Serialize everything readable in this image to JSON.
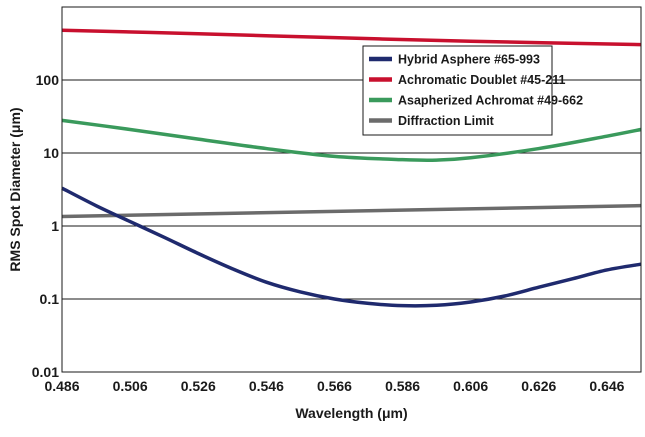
{
  "chart_data": {
    "type": "line",
    "title": "",
    "xlabel": "Wavelength (μm)",
    "ylabel": "RMS Spot Diameter (μm)",
    "xlim": [
      0.486,
      0.656
    ],
    "ylim": [
      0.01,
      1000
    ],
    "yscale": "log",
    "grid": "horizontal",
    "legend_position": "top-right",
    "x_ticks": [
      "0.486",
      "0.506",
      "0.526",
      "0.546",
      "0.566",
      "0.586",
      "0.606",
      "0.626",
      "0.646"
    ],
    "x_tick_values": [
      0.486,
      0.506,
      0.526,
      0.546,
      0.566,
      0.586,
      0.606,
      0.626,
      0.646
    ],
    "y_ticks": [
      "0.01",
      "0.1",
      "1",
      "10",
      "100"
    ],
    "y_tick_values": [
      0.01,
      0.1,
      1,
      10,
      100
    ],
    "series": [
      {
        "name": "Hybrid Asphere #65-993",
        "color": "#1f2a6e",
        "x": [
          0.486,
          0.496,
          0.506,
          0.516,
          0.526,
          0.536,
          0.546,
          0.556,
          0.566,
          0.576,
          0.586,
          0.596,
          0.606,
          0.616,
          0.626,
          0.636,
          0.646,
          0.656
        ],
        "y": [
          3.3,
          1.9,
          1.15,
          0.7,
          0.42,
          0.26,
          0.17,
          0.125,
          0.1,
          0.087,
          0.081,
          0.082,
          0.091,
          0.11,
          0.145,
          0.19,
          0.25,
          0.3
        ]
      },
      {
        "name": "Achromatic Doublet #45-211",
        "color": "#c8102e",
        "x": [
          0.486,
          0.526,
          0.566,
          0.606,
          0.656
        ],
        "y": [
          480,
          430,
          380,
          340,
          305
        ]
      },
      {
        "name": "Asapherized Achromat #49-662",
        "color": "#3a9a5c",
        "x": [
          0.486,
          0.506,
          0.526,
          0.546,
          0.566,
          0.586,
          0.596,
          0.606,
          0.626,
          0.646,
          0.656
        ],
        "y": [
          28,
          21,
          15.5,
          11.5,
          9,
          8.1,
          8,
          8.6,
          11.5,
          17,
          21
        ]
      },
      {
        "name": "Diffraction Limit",
        "color": "#6b6b6b",
        "x": [
          0.486,
          0.656
        ],
        "y": [
          1.35,
          1.9
        ]
      }
    ]
  }
}
